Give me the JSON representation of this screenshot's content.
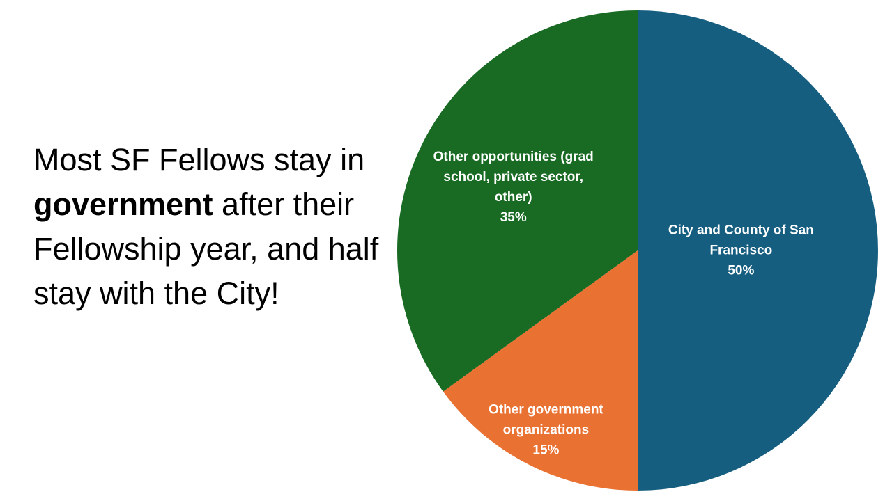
{
  "chart_data": {
    "type": "pie",
    "title": [
      "Most SF Fellows stay in ",
      "government",
      " after their Fellowship year, and half stay with the City!"
    ],
    "categories": [
      "City and County of San Francisco",
      "Other government organizations",
      "Other opportunities (grad school, private sector, other)"
    ],
    "values": [
      50,
      15,
      35
    ],
    "value_labels": [
      "50%",
      "15%",
      "35%"
    ],
    "colors": [
      "#165e80",
      "#e97132",
      "#196b24"
    ]
  }
}
